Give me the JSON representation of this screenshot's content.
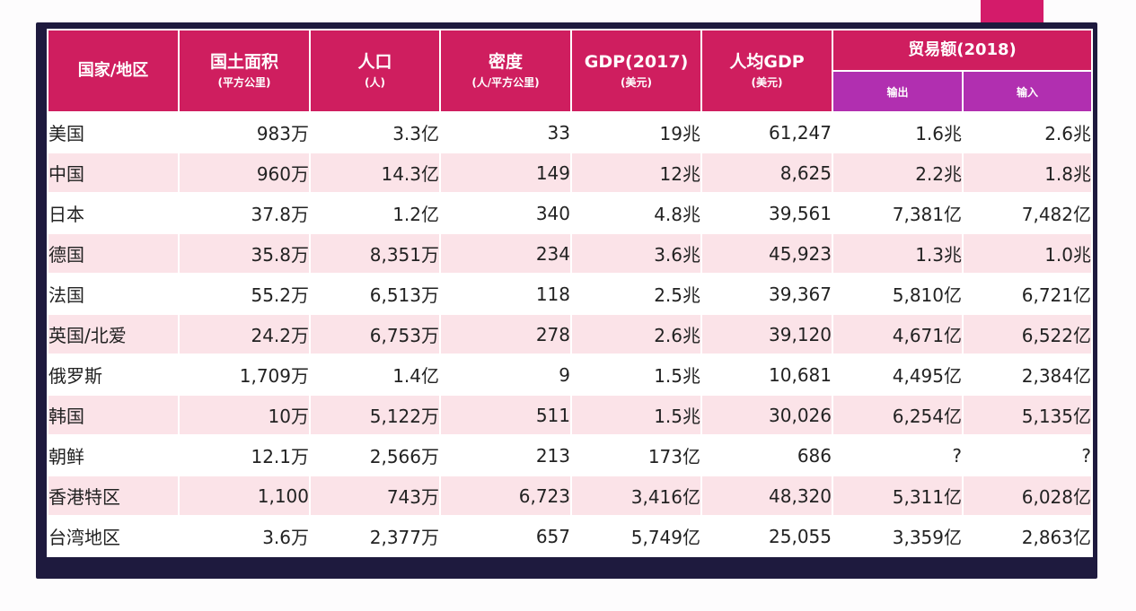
{
  "table": {
    "headers": {
      "country": "国家/地区",
      "area": {
        "main": "国土面积",
        "sub": "(平方公里)"
      },
      "population": {
        "main": "人口",
        "sub": "(人)"
      },
      "density": {
        "main": "密度",
        "sub": "(人/平方公里)"
      },
      "gdp": {
        "main": "GDP(2017)",
        "sub": "(美元)"
      },
      "gdp_per_capita": {
        "main": "人均GDP",
        "sub": "(美元)"
      },
      "trade": {
        "main": "贸易额(2018)",
        "export": "输出",
        "import": "输入"
      }
    },
    "rows": [
      {
        "name": "美国",
        "area": "983万",
        "population": "3.3亿",
        "density": "33",
        "gdp": "19兆",
        "gdp_pc": "61,247",
        "export": "1.6兆",
        "import": "2.6兆"
      },
      {
        "name": "中国",
        "area": "960万",
        "population": "14.3亿",
        "density": "149",
        "gdp": "12兆",
        "gdp_pc": "8,625",
        "export": "2.2兆",
        "import": "1.8兆"
      },
      {
        "name": "日本",
        "area": "37.8万",
        "population": "1.2亿",
        "density": "340",
        "gdp": "4.8兆",
        "gdp_pc": "39,561",
        "export": "7,381亿",
        "import": "7,482亿"
      },
      {
        "name": "德国",
        "area": "35.8万",
        "population": "8,351万",
        "density": "234",
        "gdp": "3.6兆",
        "gdp_pc": "45,923",
        "export": "1.3兆",
        "import": "1.0兆"
      },
      {
        "name": "法国",
        "area": "55.2万",
        "population": "6,513万",
        "density": "118",
        "gdp": "2.5兆",
        "gdp_pc": "39,367",
        "export": "5,810亿",
        "import": "6,721亿"
      },
      {
        "name": "英国/北爱",
        "area": "24.2万",
        "population": "6,753万",
        "density": "278",
        "gdp": "2.6兆",
        "gdp_pc": "39,120",
        "export": "4,671亿",
        "import": "6,522亿"
      },
      {
        "name": "俄罗斯",
        "area": "1,709万",
        "population": "1.4亿",
        "density": "9",
        "gdp": "1.5兆",
        "gdp_pc": "10,681",
        "export": "4,495亿",
        "import": "2,384亿"
      },
      {
        "name": "韩国",
        "area": "10万",
        "population": "5,122万",
        "density": "511",
        "gdp": "1.5兆",
        "gdp_pc": "30,026",
        "export": "6,254亿",
        "import": "5,135亿"
      },
      {
        "name": "朝鲜",
        "area": "12.1万",
        "population": "2,566万",
        "density": "213",
        "gdp": "173亿",
        "gdp_pc": "686",
        "export": "?",
        "import": "?"
      },
      {
        "name": "香港特区",
        "area": "1,100",
        "population": "743万",
        "density": "6,723",
        "gdp": "3,416亿",
        "gdp_pc": "48,320",
        "export": "5,311亿",
        "import": "6,028亿"
      },
      {
        "name": "台湾地区",
        "area": "3.6万",
        "population": "2,377万",
        "density": "657",
        "gdp": "5,749亿",
        "gdp_pc": "25,055",
        "export": "3,359亿",
        "import": "2,863亿"
      }
    ]
  },
  "colors": {
    "header": "#cf1e5f",
    "subheader": "#b12fb0",
    "row_alt": "#fbe3e8",
    "frame": "#1e1a3e"
  }
}
